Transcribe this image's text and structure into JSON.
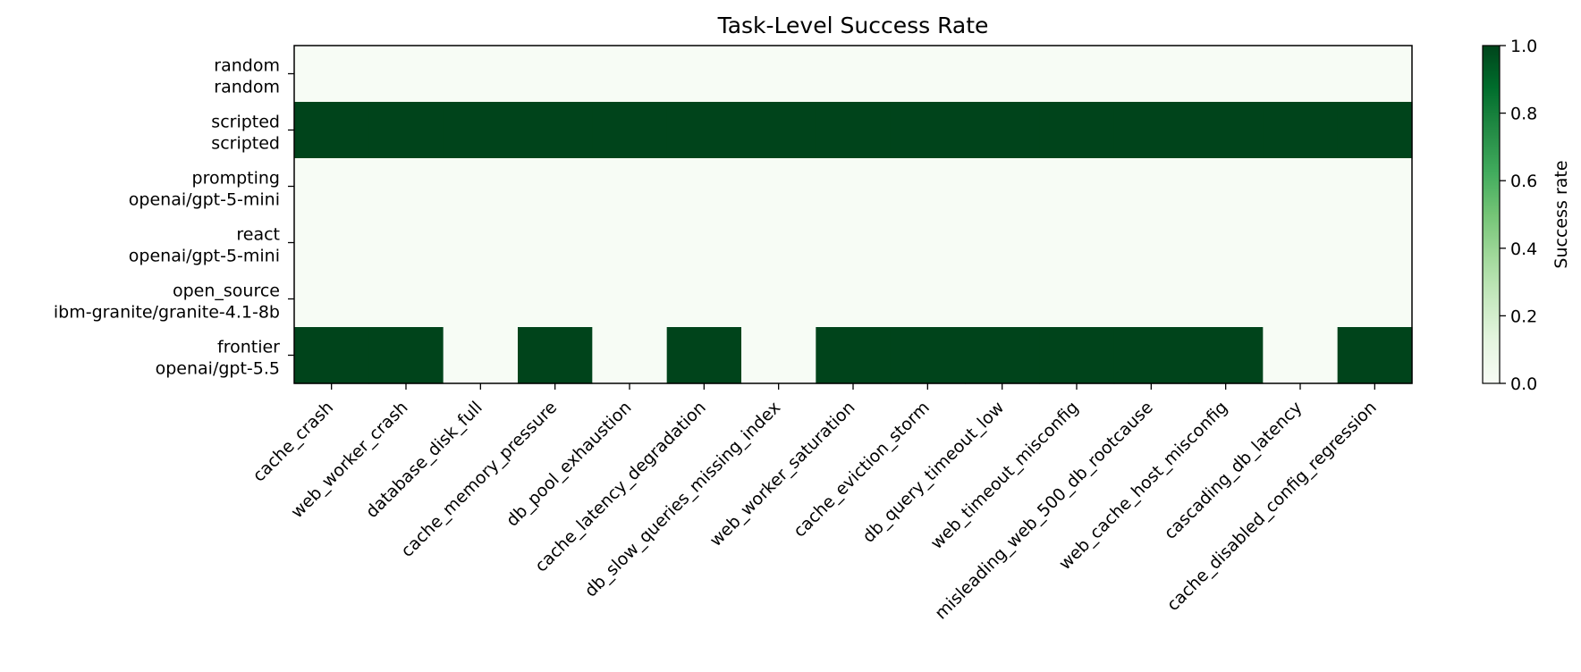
{
  "chart_data": {
    "type": "heatmap",
    "title": "Task-Level Success Rate",
    "xlabel": "",
    "ylabel": "",
    "rows": [
      {
        "line1": "random",
        "line2": "random"
      },
      {
        "line1": "scripted",
        "line2": "scripted"
      },
      {
        "line1": "prompting",
        "line2": "openai/gpt-5-mini"
      },
      {
        "line1": "react",
        "line2": "openai/gpt-5-mini"
      },
      {
        "line1": "open_source",
        "line2": "ibm-granite/granite-4.1-8b"
      },
      {
        "line1": "frontier",
        "line2": "openai/gpt-5.5"
      }
    ],
    "columns": [
      "cache_crash",
      "web_worker_crash",
      "database_disk_full",
      "cache_memory_pressure",
      "db_pool_exhaustion",
      "cache_latency_degradation",
      "db_slow_queries_missing_index",
      "web_worker_saturation",
      "cache_eviction_storm",
      "db_query_timeout_low",
      "web_timeout_misconfig",
      "misleading_web_500_db_rootcause",
      "web_cache_host_misconfig",
      "cascading_db_latency",
      "cache_disabled_config_regression"
    ],
    "values": [
      [
        0,
        0,
        0,
        0,
        0,
        0,
        0,
        0,
        0,
        0,
        0,
        0,
        0,
        0,
        0
      ],
      [
        1,
        1,
        1,
        1,
        1,
        1,
        1,
        1,
        1,
        1,
        1,
        1,
        1,
        1,
        1
      ],
      [
        0,
        0,
        0,
        0,
        0,
        0,
        0,
        0,
        0,
        0,
        0,
        0,
        0,
        0,
        0
      ],
      [
        0,
        0,
        0,
        0,
        0,
        0,
        0,
        0,
        0,
        0,
        0,
        0,
        0,
        0,
        0
      ],
      [
        0,
        0,
        0,
        0,
        0,
        0,
        0,
        0,
        0,
        0,
        0,
        0,
        0,
        0,
        0
      ],
      [
        1,
        1,
        0,
        1,
        0,
        1,
        0,
        1,
        1,
        1,
        1,
        1,
        1,
        0,
        1
      ]
    ],
    "colorbar": {
      "label": "Success rate",
      "range": [
        0.0,
        1.0
      ],
      "ticks": [
        "0.0",
        "0.2",
        "0.4",
        "0.6",
        "0.8",
        "1.0"
      ],
      "colormap": "Greens",
      "color_low": "#f7fcf5",
      "color_high": "#00441b"
    }
  }
}
